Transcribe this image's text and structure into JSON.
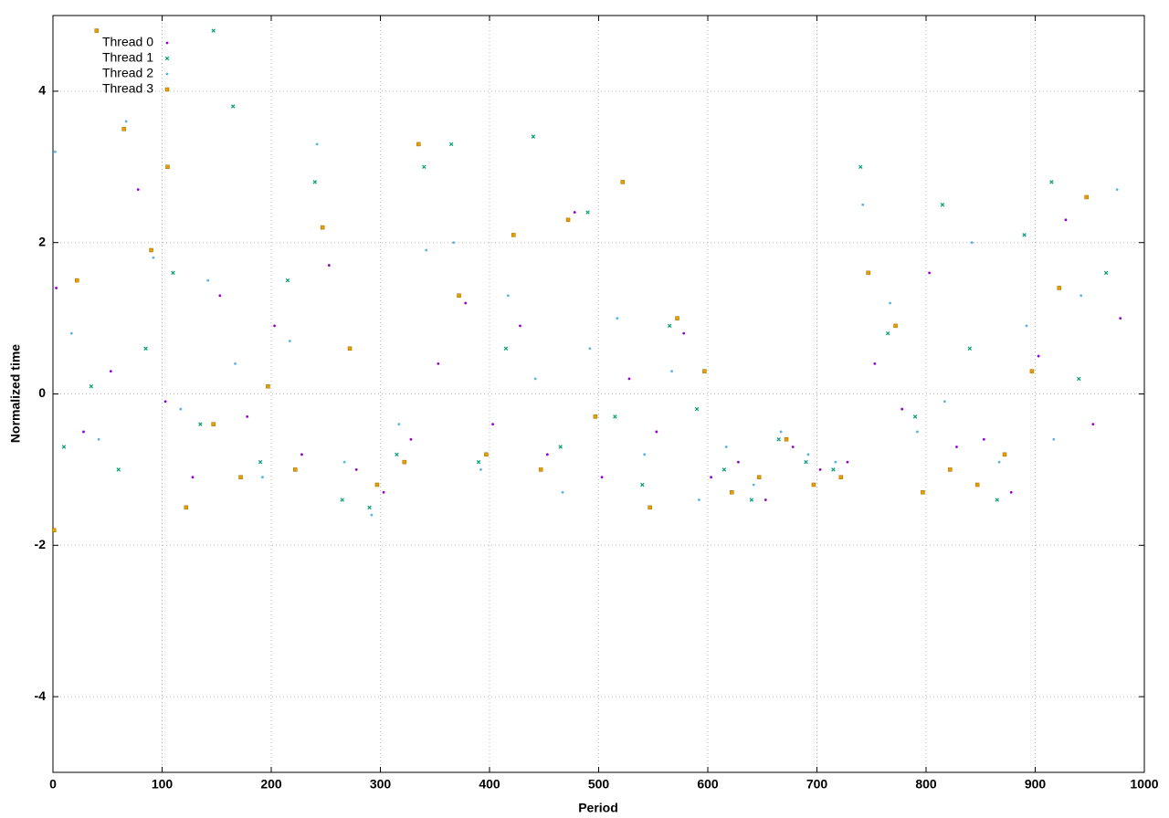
{
  "chart_data": {
    "type": "scatter",
    "x_label": "Period",
    "y_label": "Normalized time",
    "xlim": [
      0,
      1000
    ],
    "ylim": [
      -5,
      5
    ],
    "xticks": [
      0,
      100,
      200,
      300,
      400,
      500,
      600,
      700,
      800,
      900,
      1000
    ],
    "yticks": [
      -4,
      -2,
      0,
      2,
      4
    ],
    "grid": true,
    "legend": "upper-left",
    "series": [
      {
        "name": "Thread 0",
        "color": "#9400d3",
        "marker": "dot",
        "x": [
          3,
          28,
          53,
          78,
          103,
          128,
          153,
          178,
          203,
          228,
          253,
          278,
          303,
          328,
          353,
          378,
          403,
          428,
          453,
          478,
          503,
          528,
          553,
          578,
          603,
          628,
          653,
          678,
          703,
          728,
          753,
          778,
          803,
          828,
          853,
          878,
          903,
          928,
          953,
          978
        ],
        "values": [
          1.4,
          -0.5,
          0.3,
          2.7,
          -0.1,
          -1.1,
          1.3,
          -0.3,
          0.9,
          -0.8,
          1.7,
          -1.0,
          -1.3,
          -0.6,
          0.4,
          1.2,
          -0.4,
          0.9,
          -0.8,
          2.4,
          -1.1,
          0.2,
          -0.5,
          0.8,
          -1.1,
          -0.9,
          -1.4,
          -0.7,
          -1.0,
          -0.9,
          0.4,
          -0.2,
          1.6,
          -0.7,
          -0.6,
          -1.3,
          0.5,
          2.3,
          -0.4,
          1.0
        ]
      },
      {
        "name": "Thread 1",
        "color": "#009e73",
        "marker": "cross",
        "x": [
          10,
          35,
          60,
          85,
          110,
          135,
          147,
          165,
          190,
          215,
          240,
          265,
          290,
          315,
          340,
          365,
          390,
          415,
          440,
          465,
          490,
          515,
          540,
          565,
          590,
          615,
          640,
          665,
          690,
          715,
          740,
          765,
          790,
          815,
          840,
          865,
          890,
          915,
          940,
          965
        ],
        "values": [
          -0.7,
          0.1,
          -1.0,
          0.6,
          1.6,
          -0.4,
          4.8,
          3.8,
          -0.9,
          1.5,
          2.8,
          -1.4,
          -1.5,
          -0.8,
          3.0,
          3.3,
          -0.9,
          0.6,
          3.4,
          -0.7,
          2.4,
          -0.3,
          -1.2,
          0.9,
          -0.2,
          -1.0,
          -1.4,
          -0.6,
          -0.9,
          -1.0,
          3.0,
          0.8,
          -0.3,
          2.5,
          0.6,
          -1.4,
          2.1,
          2.8,
          0.2,
          1.6
        ]
      },
      {
        "name": "Thread 2",
        "color": "#56b4e9",
        "marker": "dot",
        "x": [
          2,
          17,
          42,
          67,
          92,
          117,
          142,
          167,
          192,
          217,
          242,
          267,
          292,
          317,
          342,
          367,
          392,
          417,
          442,
          467,
          492,
          517,
          542,
          567,
          592,
          617,
          642,
          667,
          692,
          717,
          742,
          767,
          792,
          817,
          842,
          867,
          892,
          917,
          942,
          975
        ],
        "values": [
          3.2,
          0.8,
          -0.6,
          3.6,
          1.8,
          -0.2,
          1.5,
          0.4,
          -1.1,
          0.7,
          3.3,
          -0.9,
          -1.6,
          -0.4,
          1.9,
          2.0,
          -1.0,
          1.3,
          0.2,
          -1.3,
          0.6,
          1.0,
          -0.8,
          0.3,
          -1.4,
          -0.7,
          -1.2,
          -0.5,
          -0.8,
          -0.9,
          2.5,
          1.2,
          -0.5,
          -0.1,
          2.0,
          -0.9,
          0.9,
          -0.6,
          1.3,
          2.7
        ]
      },
      {
        "name": "Thread 3",
        "color": "#e69f00",
        "marker": "square",
        "x": [
          1,
          22,
          40,
          65,
          90,
          105,
          122,
          147,
          172,
          197,
          222,
          247,
          272,
          297,
          322,
          335,
          372,
          397,
          422,
          447,
          472,
          497,
          522,
          547,
          572,
          597,
          622,
          647,
          672,
          697,
          722,
          747,
          772,
          797,
          822,
          847,
          872,
          897,
          922,
          947
        ],
        "values": [
          -1.8,
          1.5,
          4.8,
          3.5,
          1.9,
          3.0,
          -1.5,
          -0.4,
          -1.1,
          0.1,
          -1.0,
          2.2,
          0.6,
          -1.2,
          -0.9,
          3.3,
          1.3,
          -0.8,
          2.1,
          -1.0,
          2.3,
          -0.3,
          2.8,
          -1.5,
          1.0,
          0.3,
          -1.3,
          -1.1,
          -0.6,
          -1.2,
          -1.1,
          1.6,
          0.9,
          -1.3,
          -1.0,
          -1.2,
          -0.8,
          0.3,
          1.4,
          2.6
        ]
      }
    ]
  }
}
